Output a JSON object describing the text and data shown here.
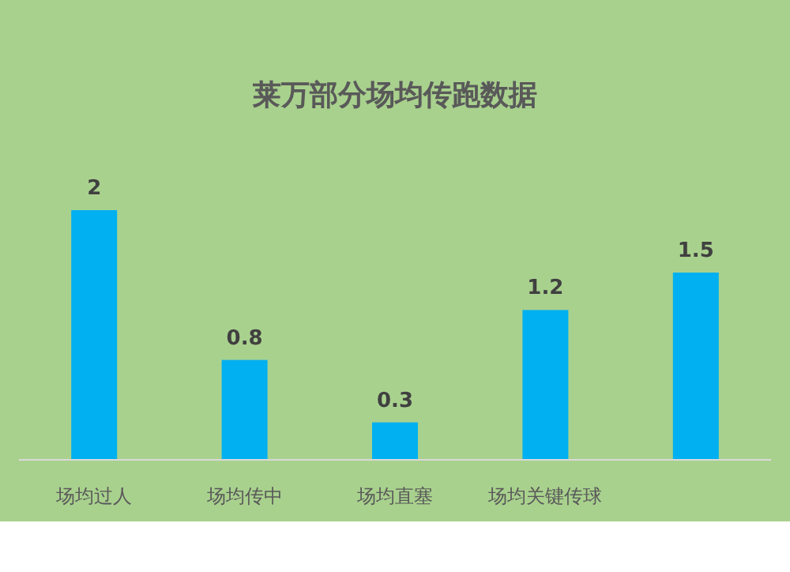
{
  "chart_data": {
    "type": "bar",
    "title": "莱万部分场均传跑数据",
    "categories": [
      "场均过人",
      "场均传中",
      "场均直塞",
      "场均关键传球",
      null
    ],
    "values": [
      2,
      0.8,
      0.3,
      1.2,
      1.5
    ],
    "color": "#00b0f0",
    "data_labels": true
  }
}
